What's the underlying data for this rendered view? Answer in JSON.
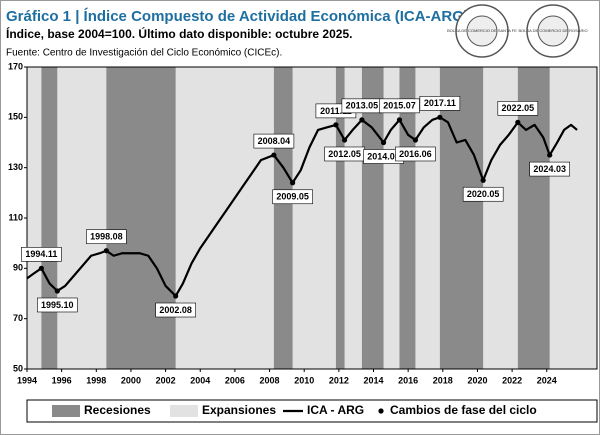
{
  "chart_data": {
    "type": "line",
    "title": "Gráfico 1 | Índice Compuesto de Actividad Económica (ICA-ARG).",
    "subtitle": "Índice, base 2004=100. Último dato disponible: octubre 2025.",
    "source": "Fuente: Centro de Investigación del Ciclo Económico (CICEc).",
    "logos": [
      "BOLSA DE COMERCIO DE SANTA FE",
      "BOLSA DE COMERCIO DE ROSARIO"
    ],
    "xlim": [
      1994,
      2026.9
    ],
    "xticks": [
      1994,
      1996,
      1998,
      2000,
      2002,
      2004,
      2006,
      2008,
      2010,
      2012,
      2014,
      2016,
      2018,
      2020,
      2022,
      2024
    ],
    "ylim": [
      50,
      170
    ],
    "yticks": [
      50,
      70,
      90,
      110,
      130,
      150,
      170
    ],
    "recessions": {
      "name": "Recesiones",
      "color": "#8a8a8a",
      "start": [
        1994.83,
        1998.58,
        2008.25,
        2011.83,
        2013.33,
        2015.5,
        2017.83,
        2022.33
      ],
      "end": [
        1995.75,
        2002.58,
        2009.33,
        2012.33,
        2014.58,
        2016.42,
        2020.33,
        2024.17
      ]
    },
    "expansions": {
      "name": "Expansiones",
      "color": "#e2e2e2",
      "start": [
        1994,
        1995.75,
        2002.58,
        2009.33,
        2012.33,
        2014.58,
        2016.42,
        2020.33,
        2024.17
      ],
      "end": [
        1994.83,
        1998.58,
        2008.25,
        2011.83,
        2013.33,
        2015.5,
        2017.83,
        2022.33,
        2026.9
      ]
    },
    "series": [
      {
        "name": "ICA - ARG",
        "color": "#000000",
        "x": [
          1994.0,
          1994.4,
          1994.83,
          1995.3,
          1995.75,
          1996.2,
          1996.7,
          1997.2,
          1997.7,
          1998.2,
          1998.58,
          1999.0,
          1999.5,
          2000.0,
          2000.5,
          2001.0,
          2001.5,
          2002.0,
          2002.58,
          2003.0,
          2003.5,
          2004.0,
          2004.5,
          2005.0,
          2005.5,
          2006.0,
          2006.5,
          2007.0,
          2007.5,
          2008.25,
          2008.8,
          2009.33,
          2009.8,
          2010.3,
          2010.8,
          2011.3,
          2011.83,
          2012.33,
          2012.8,
          2013.33,
          2013.9,
          2014.58,
          2015.0,
          2015.5,
          2016.0,
          2016.42,
          2016.9,
          2017.4,
          2017.83,
          2018.3,
          2018.8,
          2019.3,
          2019.8,
          2020.33,
          2020.8,
          2021.3,
          2021.8,
          2022.33,
          2022.8,
          2023.3,
          2023.8,
          2024.17,
          2024.6,
          2025.0,
          2025.4,
          2025.75
        ],
        "values": [
          86,
          88,
          90,
          84,
          81,
          83,
          87,
          91,
          95,
          96,
          97,
          95,
          96,
          96,
          96,
          95,
          90,
          83,
          79,
          84,
          92,
          98,
          103,
          108,
          113,
          118,
          123,
          128,
          133,
          135,
          130,
          124,
          129,
          138,
          145,
          146,
          147,
          141,
          145,
          149,
          146,
          140,
          145,
          149,
          143,
          141,
          146,
          149,
          150,
          148,
          140,
          141,
          135,
          125,
          133,
          139,
          143,
          148,
          145,
          147,
          142,
          135,
          140,
          145,
          147,
          145
        ]
      }
    ],
    "turning_points": {
      "name": "Cambios de fase del ciclo",
      "color": "#000000",
      "labels": [
        "1994.11",
        "1995.10",
        "1998.08",
        "2002.08",
        "2008.04",
        "2009.05",
        "2011.11",
        "2012.05",
        "2013.05",
        "2014.08",
        "2015.07",
        "2016.06",
        "2017.11",
        "2020.05",
        "2022.05",
        "2024.03"
      ],
      "x": [
        1994.83,
        1995.75,
        1998.58,
        2002.58,
        2008.25,
        2009.33,
        2011.83,
        2012.33,
        2013.33,
        2014.58,
        2015.5,
        2016.42,
        2017.83,
        2020.33,
        2022.33,
        2024.17
      ],
      "values": [
        90,
        81,
        97,
        79,
        135,
        124,
        147,
        141,
        149,
        140,
        149,
        141,
        150,
        125,
        148,
        135
      ]
    }
  }
}
